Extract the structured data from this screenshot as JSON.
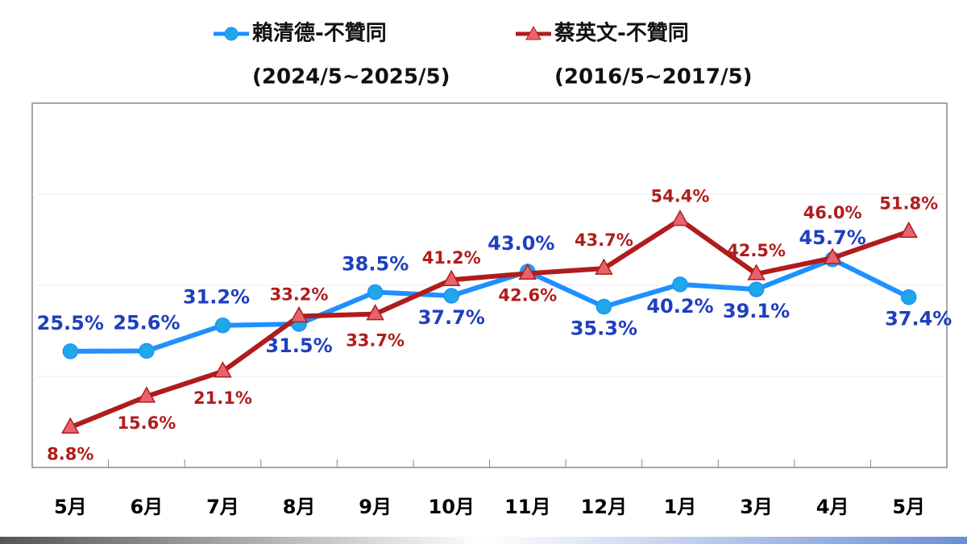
{
  "chart_data": {
    "type": "line",
    "categories": [
      "5月",
      "6月",
      "7月",
      "8月",
      "9月",
      "10月",
      "11月",
      "12月",
      "1月",
      "3月",
      "4月",
      "5月"
    ],
    "series": [
      {
        "name": "賴清德-不贊同",
        "period": "(2024/5~2025/5)",
        "color": "#1e90ff",
        "label_color": "#1f3fbf",
        "marker": "circle",
        "values": [
          25.5,
          25.6,
          31.2,
          31.5,
          38.5,
          37.7,
          43.0,
          35.3,
          40.2,
          39.1,
          45.7,
          37.4
        ],
        "value_labels": [
          "25.5%",
          "25.6%",
          "31.2%",
          "31.5%",
          "38.5%",
          "37.7%",
          "43.0%",
          "35.3%",
          "40.2%",
          "39.1%",
          "45.7%",
          "37.4%"
        ]
      },
      {
        "name": "蔡英文-不贊同",
        "period": "(2016/5~2017/5)",
        "color": "#b01c1c",
        "label_color": "#b01c1c",
        "marker": "triangle",
        "values": [
          8.8,
          15.6,
          21.1,
          33.2,
          33.7,
          41.2,
          42.6,
          43.7,
          54.4,
          42.5,
          46.0,
          51.8
        ],
        "value_labels": [
          "8.8%",
          "15.6%",
          "21.1%",
          "33.2%",
          "33.7%",
          "41.2%",
          "42.6%",
          "43.7%",
          "54.4%",
          "42.5%",
          "46.0%",
          "51.8%"
        ]
      }
    ],
    "ylim": [
      0,
      80
    ],
    "yticks": [
      20,
      40,
      60
    ],
    "grid": true
  }
}
